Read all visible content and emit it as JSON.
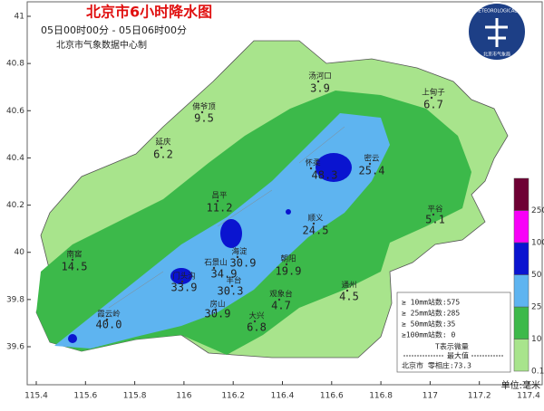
{
  "header": {
    "title": "北京市6小时降水图",
    "period": "05日00时00分 - 05日06时00分",
    "producer": "北京市气象数据中心制"
  },
  "logo": {
    "text": "BEIJING METEOROLOGICAL SERVICE",
    "subtext": "北京市气象局"
  },
  "axes": {
    "lat_ticks": [
      41,
      40.8,
      40.6,
      40.4,
      40.2,
      40,
      39.8,
      39.6
    ],
    "lon_ticks": [
      115.4,
      115.6,
      115.8,
      116,
      116.2,
      116.4,
      116.6,
      116.8,
      117,
      117.2,
      117.4
    ]
  },
  "stations": [
    {
      "name": "汤河口",
      "value": "3.9"
    },
    {
      "name": "上甸子",
      "value": "6.7"
    },
    {
      "name": "佛爷顶",
      "value": "9.5"
    },
    {
      "name": "延庆",
      "value": "6.2"
    },
    {
      "name": "怀柔",
      "value": "48.3"
    },
    {
      "name": "密云",
      "value": "25.4"
    },
    {
      "name": "昌平",
      "value": "11.2"
    },
    {
      "name": "顺义",
      "value": "24.5"
    },
    {
      "name": "平谷",
      "value": "5.1"
    },
    {
      "name": "南窖",
      "value": "14.5"
    },
    {
      "name": "朝阳",
      "value": "19.9"
    },
    {
      "name": "海淀",
      "value": "30.9"
    },
    {
      "name": "石景山",
      "value": "34.9"
    },
    {
      "name": "门头沟",
      "value": "33.9"
    },
    {
      "name": "丰台",
      "value": "30.3"
    },
    {
      "name": "观象台",
      "value": "4.7"
    },
    {
      "name": "通州",
      "value": "4.5"
    },
    {
      "name": "霞云岭",
      "value": "40.0"
    },
    {
      "name": "房山",
      "value": "30.9"
    },
    {
      "name": "大兴",
      "value": "6.8"
    }
  ],
  "legend": {
    "levels": [
      0.1,
      10,
      25,
      50,
      100,
      250
    ],
    "colors": [
      "#a8e48c",
      "#3cb94a",
      "#5eb4f0",
      "#0a14d0",
      "#f800f8",
      "#6e0034"
    ],
    "unit": "单位:毫米"
  },
  "summary": {
    "lines": [
      "≥ 10mm站数:575",
      "≥ 25mm站数:285",
      "≥ 50mm站数:35",
      "≥100mm站数: 0"
    ],
    "note": "T表示微量",
    "max_title": "最大值",
    "max": "北京市 零相庄:73.3"
  }
}
